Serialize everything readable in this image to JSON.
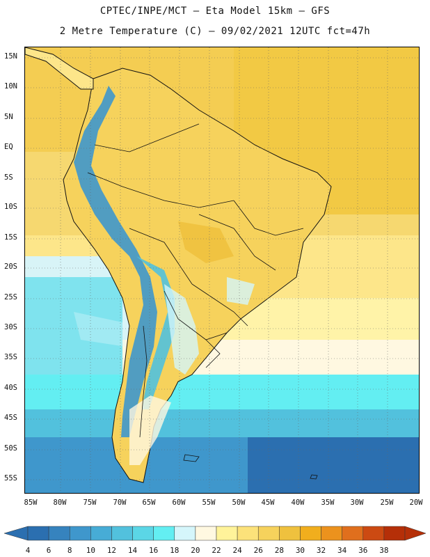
{
  "header": {
    "line1": "CPTEC/INPE/MCT –  Eta Model 15km – GFS",
    "line2": "2 Metre Temperature (C) – 09/02/2021 12UTC fct=47h"
  },
  "map": {
    "lat_labels": [
      "15N",
      "10N",
      "5N",
      "EQ",
      "5S",
      "10S",
      "15S",
      "20S",
      "25S",
      "30S",
      "35S",
      "40S",
      "45S",
      "50S",
      "55S"
    ],
    "lon_labels": [
      "85W",
      "80W",
      "75W",
      "70W",
      "65W",
      "60W",
      "55W",
      "50W",
      "45W",
      "40W",
      "35W",
      "30W",
      "25W",
      "20W"
    ]
  },
  "colorbar": {
    "values": [
      "4",
      "6",
      "8",
      "10",
      "12",
      "14",
      "16",
      "18",
      "20",
      "22",
      "24",
      "26",
      "28",
      "30",
      "32",
      "34",
      "36",
      "38"
    ],
    "colors": [
      "#2b6fb0",
      "#3683be",
      "#3f97cc",
      "#47acd6",
      "#52c1dd",
      "#5bd6e6",
      "#63eef2",
      "#d5f6fb",
      "#fff8e1",
      "#fff39a",
      "#fce27a",
      "#f6d25c",
      "#efc13e",
      "#f1ae1d",
      "#ec921d",
      "#e06f1d",
      "#cc4a12",
      "#b52f08"
    ]
  }
}
